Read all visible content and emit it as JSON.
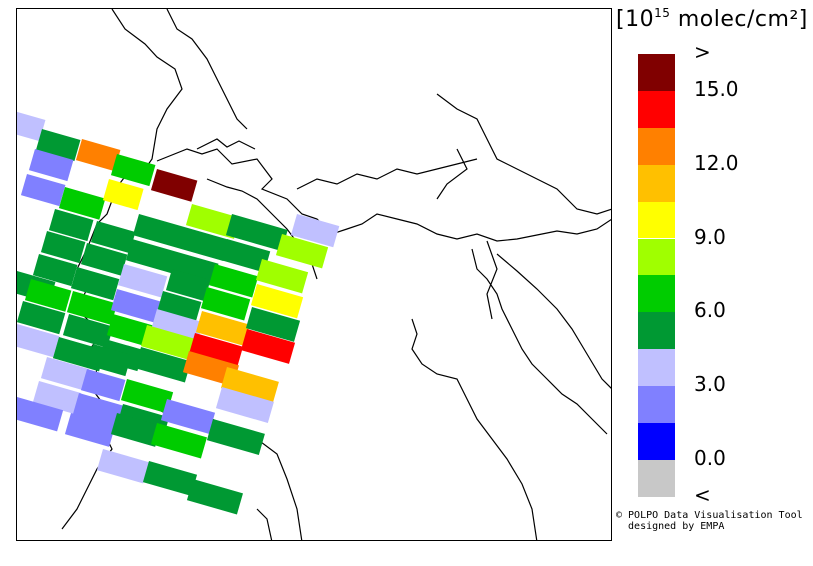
{
  "map": {
    "land_color": "#ffffff",
    "border_color": "#000000"
  },
  "legend": {
    "unit": {
      "bracket_open": "[",
      "base": "10",
      "exponent": "15",
      "text": " molec/cm²",
      "bracket_close": "]"
    },
    "classes": [
      {
        "color": "#800000",
        "label": ">"
      },
      {
        "color": "#ff0000",
        "label": "15.0"
      },
      {
        "color": "#ff8000",
        "label": ""
      },
      {
        "color": "#ffc000",
        "label": "12.0"
      },
      {
        "color": "#ffff00",
        "label": ""
      },
      {
        "color": "#a0ff00",
        "label": "9.0"
      },
      {
        "color": "#00cc00",
        "label": ""
      },
      {
        "color": "#009933",
        "label": "6.0"
      },
      {
        "color": "#c0c0ff",
        "label": ""
      },
      {
        "color": "#8080ff",
        "label": "3.0"
      },
      {
        "color": "#0000ff",
        "label": ""
      },
      {
        "color": "#c8c8c8",
        "label": "0.0"
      },
      {
        "color": "",
        "label": "<"
      }
    ]
  },
  "credits": {
    "line1": "© POLPO Data Visualisation Tool",
    "line2": "  designed by EMPA"
  }
}
